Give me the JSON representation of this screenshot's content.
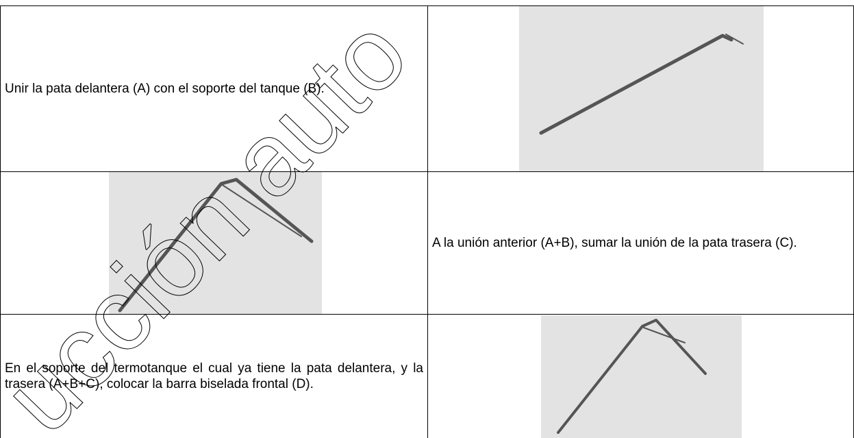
{
  "table": {
    "rows": [
      [
        "Unir la pata delantera (A) con el soporte del tanque (B)."
      ],
      [
        "A la unión anterior (A+B), sumar la unión de la pata trasera (C)."
      ],
      [
        "En el soporte del termotanque el cual ya tiene la pata delantera, y la trasera (A+B+C), colocar la barra biselada frontal (D)."
      ]
    ]
  },
  "watermark": "ucción auto"
}
